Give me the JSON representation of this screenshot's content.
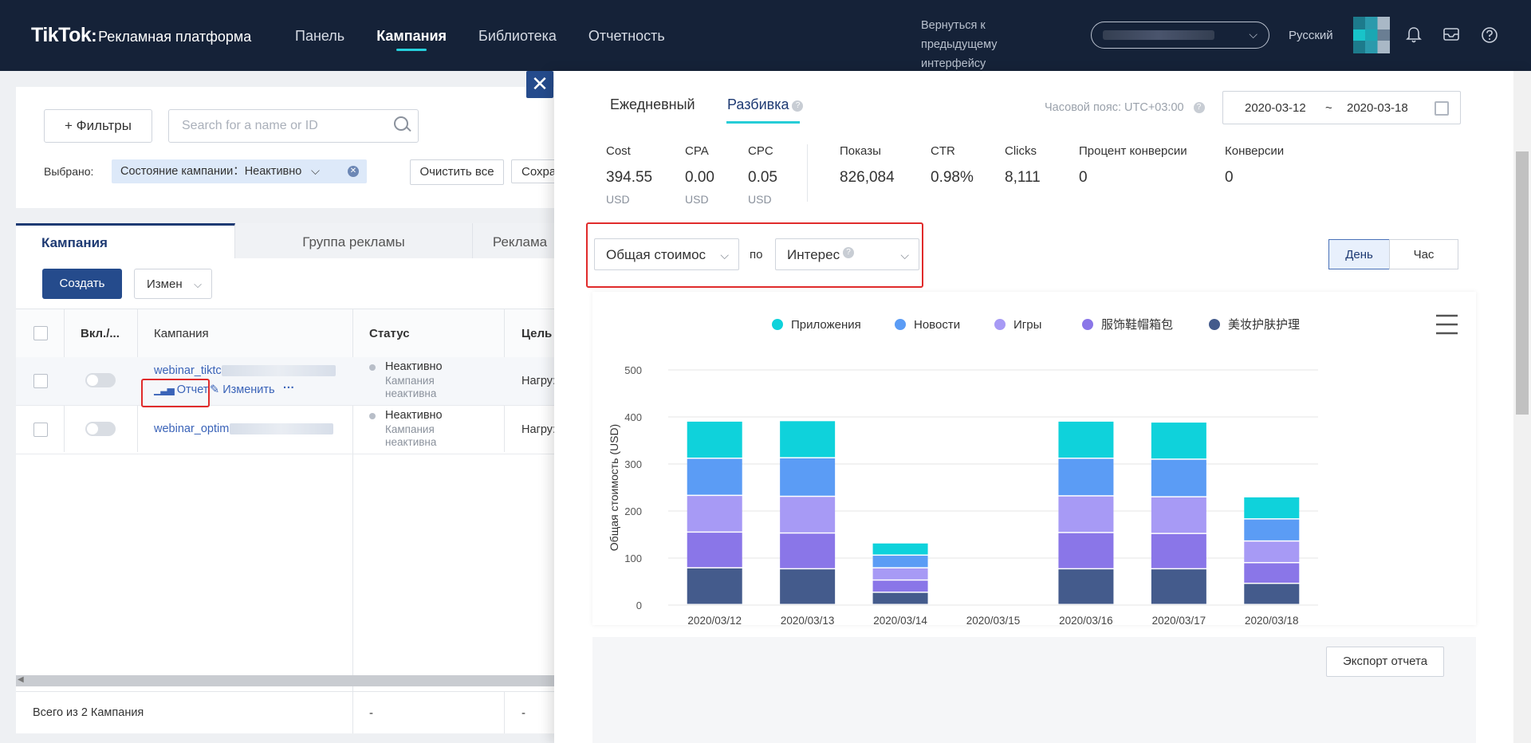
{
  "header": {
    "logo": "TikTok",
    "logo_sub": "Рекламная платформа",
    "nav": [
      "Панель",
      "Кампания",
      "Библиотека",
      "Отчетность"
    ],
    "return_link": "Вернуться к предыдущему интерфейсу",
    "language": "Русский"
  },
  "filters": {
    "filters_btn": "Фильтры",
    "search_placeholder": "Search for a name or ID",
    "selected_label": "Выбрано:",
    "chip": "Состояние кампании：Неактивно",
    "clear_all": "Очистить все",
    "save": "Сохра"
  },
  "table": {
    "tabs": [
      "Кампания",
      "Группа рекламы",
      "Реклама"
    ],
    "create": "Создать",
    "edit": "Измен",
    "headers": [
      "Вкл./...",
      "Кампания",
      "Статус",
      "Цель"
    ],
    "rows": [
      {
        "name": "webinar_tiktc",
        "status": "Неактивно",
        "status_sub1": "Кампания",
        "status_sub2": "неактивна",
        "goal": "Нагру:"
      },
      {
        "name": "webinar_optim",
        "status": "Неактивно",
        "status_sub1": "Кампания",
        "status_sub2": "неактивна",
        "goal": "Нагру:"
      }
    ],
    "row_actions": {
      "report": "Отчет",
      "edit": "Изменить",
      "more": "···"
    },
    "footer": "Всего из 2 Кампания",
    "footer_dash1": "-",
    "footer_dash2": "-"
  },
  "report": {
    "tabs": [
      "Ежедневный",
      "Разбивка"
    ],
    "timezone": "Часовой пояс: UTC+03:00",
    "date_from": "2020-03-12",
    "date_sep": "~",
    "date_to": "2020-03-18",
    "metrics": [
      {
        "label": "Cost",
        "value": "394.55",
        "unit": "USD"
      },
      {
        "label": "CPA",
        "value": "0.00",
        "unit": "USD"
      },
      {
        "label": "CPC",
        "value": "0.05",
        "unit": "USD"
      },
      {
        "label": "Показы",
        "value": "826,084",
        "unit": ""
      },
      {
        "label": "CTR",
        "value": "0.98%",
        "unit": ""
      },
      {
        "label": "Clicks",
        "value": "8,111",
        "unit": ""
      },
      {
        "label": "Процент конверсии",
        "value": "0",
        "unit": ""
      },
      {
        "label": "Конверсии",
        "value": "0",
        "unit": ""
      }
    ],
    "metric_select": "Общая стоимос",
    "by_label": "по",
    "dimension_select": "Интерес",
    "granularity": [
      "День",
      "Час"
    ],
    "export": "Экспорт отчета"
  },
  "chart_data": {
    "type": "bar",
    "stacked": true,
    "categories": [
      "2020/03/12",
      "2020/03/13",
      "2020/03/14",
      "2020/03/15",
      "2020/03/16",
      "2020/03/17",
      "2020/03/18"
    ],
    "ylabel": "Общая стоимость (USD)",
    "ylim": [
      0,
      500
    ],
    "yticks": [
      0,
      100,
      200,
      300,
      400,
      500
    ],
    "grid": true,
    "legend_position": "top",
    "series": [
      {
        "name": "美妆护肤护理",
        "color": "#445b8c",
        "values": [
          78,
          76,
          26,
          0,
          76,
          76,
          45
        ]
      },
      {
        "name": "服饰鞋帽箱包",
        "color": "#8a76e8",
        "values": [
          76,
          76,
          26,
          0,
          77,
          75,
          44
        ]
      },
      {
        "name": "Игры",
        "color": "#a79af5",
        "values": [
          78,
          78,
          26,
          0,
          78,
          78,
          46
        ]
      },
      {
        "name": "Новости",
        "color": "#5b9cf5",
        "values": [
          79,
          82,
          27,
          0,
          80,
          80,
          47
        ]
      },
      {
        "name": "Приложения",
        "color": "#0fd2db",
        "values": [
          79,
          79,
          26,
          0,
          79,
          79,
          47
        ]
      }
    ],
    "legend_order": [
      "Приложения",
      "Новости",
      "Игры",
      "服饰鞋帽箱包",
      "美妆护肤护理"
    ]
  }
}
